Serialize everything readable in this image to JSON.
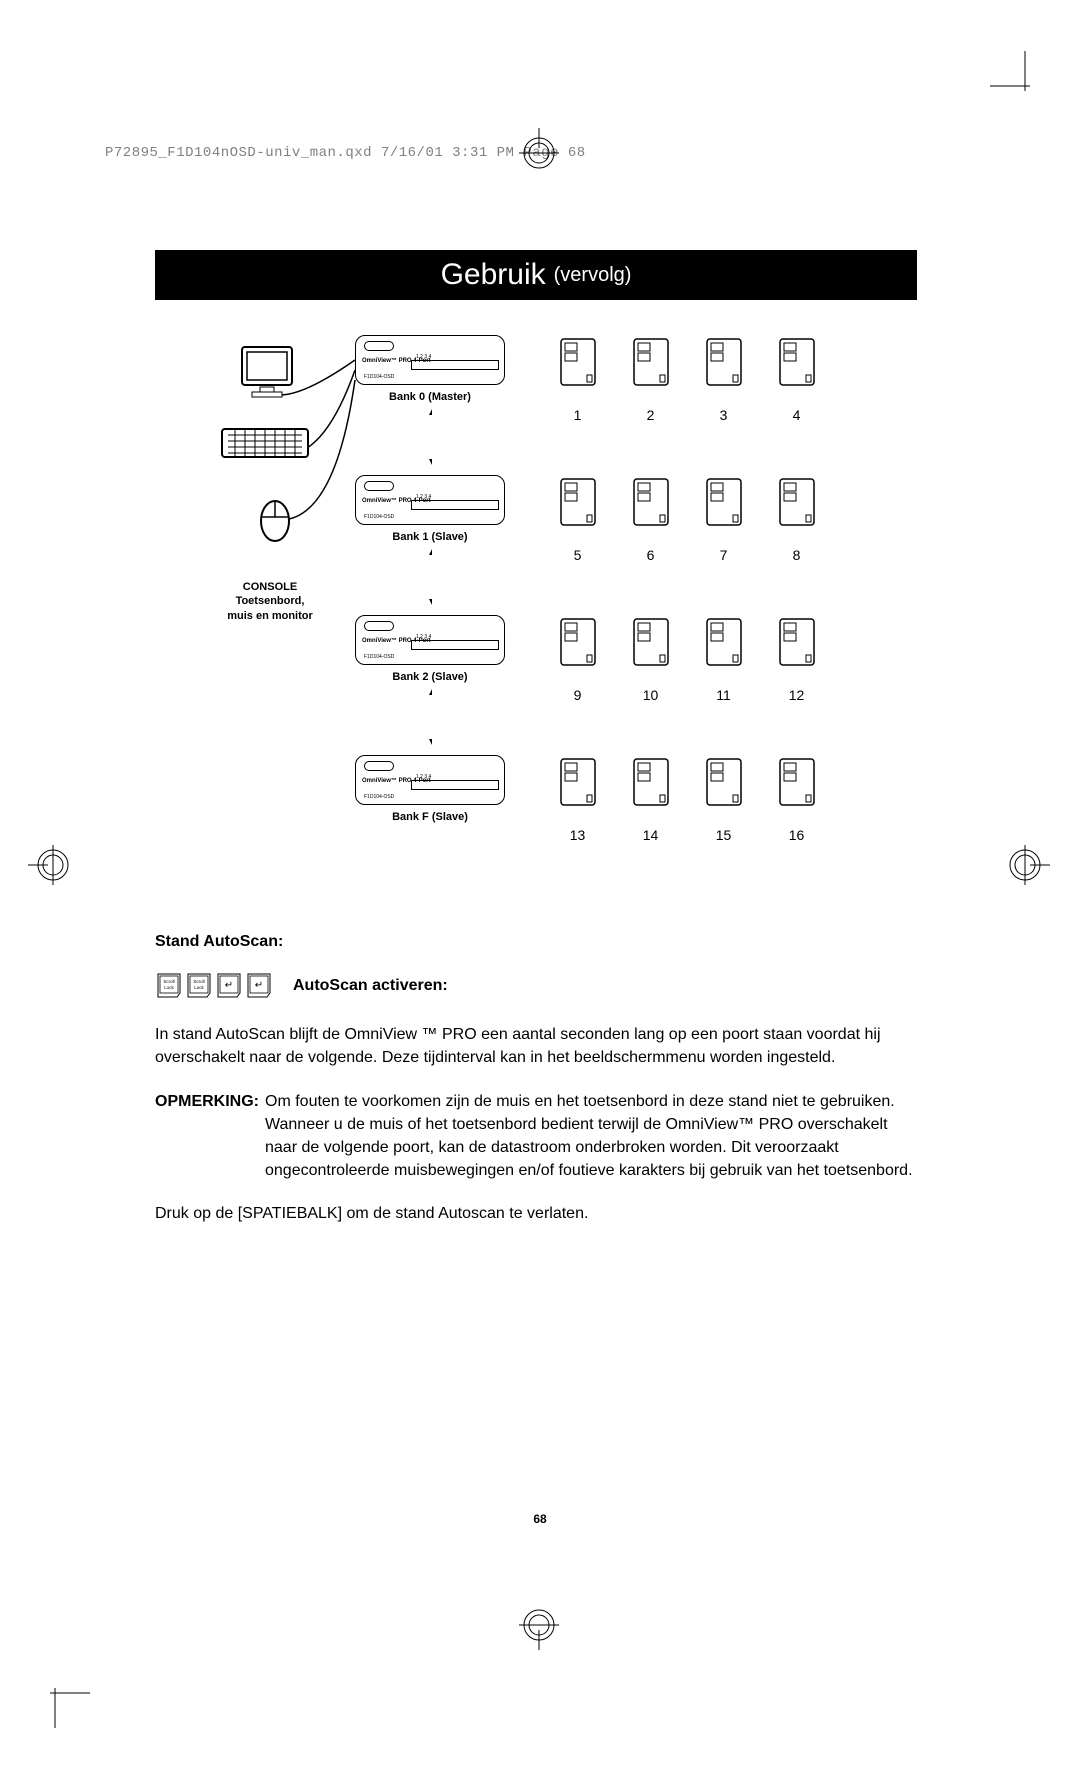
{
  "header": {
    "file_info": "P72895_F1D104nOSD-univ_man.qxd  7/16/01  3:31 PM  Page 68"
  },
  "title": {
    "main": "Gebruik",
    "sub": "(vervolg)"
  },
  "colors": {
    "title_bg": "#000000",
    "title_fg": "#ffffff",
    "page_bg": "#ffffff",
    "text": "#000000",
    "header_text": "#808080"
  },
  "diagram": {
    "console_label_line1": "CONSOLE",
    "console_label_line2": "Toetsenbord,",
    "console_label_line3": "muis en monitor",
    "kvm_product": "OmniView™ PRO 4-Port",
    "kvm_model": "F1D104-OSD",
    "kvm_port_labels": "1  2  3  4",
    "banks": [
      {
        "label": "Bank 0 (Master)",
        "computers": [
          1,
          2,
          3,
          4
        ]
      },
      {
        "label": "Bank 1 (Slave)",
        "computers": [
          5,
          6,
          7,
          8
        ]
      },
      {
        "label": "Bank 2 (Slave)",
        "computers": [
          9,
          10,
          11,
          12
        ]
      },
      {
        "label": "Bank F (Slave)",
        "computers": [
          13,
          14,
          15,
          16
        ]
      }
    ]
  },
  "body": {
    "section_label": "Stand AutoScan:",
    "activate_label": "AutoScan activeren:",
    "keys": [
      "Scroll Lock",
      "Scroll Lock",
      "↵",
      "↵"
    ],
    "para1": "In stand AutoScan blijft de OmniView ™ PRO een aantal seconden lang op een poort staan voordat hij overschakelt naar de volgende. Deze tijdinterval kan in het beeldschermmenu worden ingesteld.",
    "note_label": "OPMERKING:",
    "note_body": "Om fouten te voorkomen zijn de muis en het toetsenbord in deze stand niet te gebruiken. Wanneer u de muis of het toetsenbord bedient terwijl de OmniView™ PRO overschakelt naar de volgende poort, kan de datastroom onderbroken worden. Dit veroorzaakt ongecontroleerde muisbewegingen en/of foutieve karakters bij gebruik van het toetsenbord.",
    "para2": "Druk op de [SPATIEBALK] om de stand Autoscan te verlaten."
  },
  "page_number": "68"
}
